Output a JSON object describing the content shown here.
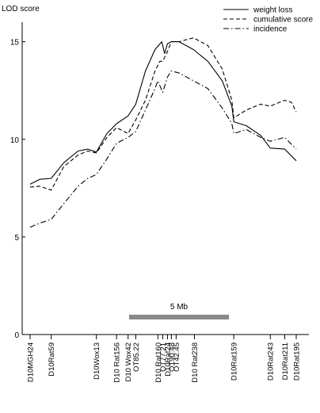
{
  "chart_data": {
    "type": "line",
    "ylabel": "LOD score",
    "ylim": [
      0,
      16
    ],
    "yticks": [
      0,
      5,
      10,
      15
    ],
    "grid": false,
    "legend_placement": "top-right",
    "scale_bar_label": "5 Mb",
    "scale_bar_range": [
      10.3,
      20.7
    ],
    "markers": [
      {
        "name": "D10MGH24",
        "pos": 0
      },
      {
        "name": "D10Rat59",
        "pos": 2.2
      },
      {
        "name": "D10Wox13",
        "pos": 6.9
      },
      {
        "name": "D10 Rat156",
        "pos": 9.0
      },
      {
        "name": "D10 Wox42",
        "pos": 10.2
      },
      {
        "name": "OT85.22",
        "pos": 11.0
      },
      {
        "name": "D10 Rat160",
        "pos": 13.3
      },
      {
        "name": "OT77.21",
        "pos": 13.8
      },
      {
        "name": "D10Rat24",
        "pos": 14.3
      },
      {
        "name": "OT90.48",
        "pos": 14.7
      },
      {
        "name": "OT42.45",
        "pos": 15.2
      },
      {
        "name": "D10 Rat238",
        "pos": 17.1
      },
      {
        "name": "D10Rat159",
        "pos": 21.2
      },
      {
        "name": "D10Rat243",
        "pos": 25.0
      },
      {
        "name": "D10Rat211",
        "pos": 26.5
      },
      {
        "name": "D10Rat195",
        "pos": 27.7
      }
    ],
    "series": [
      {
        "name": "weight loss",
        "dash": "solid",
        "x": [
          0,
          1.0,
          2.2,
          3.5,
          5.0,
          6.0,
          6.9,
          8.0,
          9.0,
          10.2,
          11.0,
          12.0,
          13.0,
          13.7,
          14.0,
          14.3,
          14.7,
          15.5,
          17.0,
          18.5,
          20.0,
          21.0,
          21.2,
          22.5,
          24.0,
          25.0,
          26.5,
          27.7
        ],
        "values": [
          7.7,
          7.95,
          8.0,
          8.8,
          9.4,
          9.5,
          9.35,
          10.3,
          10.8,
          11.2,
          11.8,
          13.5,
          14.6,
          15.0,
          14.4,
          14.9,
          15.0,
          15.0,
          14.6,
          14.0,
          13.0,
          11.7,
          10.9,
          10.7,
          10.2,
          9.55,
          9.5,
          8.9
        ]
      },
      {
        "name": "cumulative score",
        "dash": "dashed",
        "x": [
          0,
          1.0,
          2.2,
          3.5,
          5.0,
          6.0,
          6.9,
          8.0,
          9.0,
          10.2,
          11.0,
          12.0,
          13.0,
          13.5,
          13.8,
          14.3,
          14.7,
          15.5,
          17.0,
          18.5,
          20.0,
          21.0,
          21.2,
          22.5,
          24.0,
          25.0,
          26.5,
          27.2,
          27.7
        ],
        "values": [
          7.55,
          7.6,
          7.4,
          8.6,
          9.2,
          9.4,
          9.3,
          10.1,
          10.6,
          10.3,
          11.0,
          12.0,
          13.5,
          14.0,
          14.0,
          14.5,
          15.0,
          15.0,
          15.2,
          14.8,
          13.6,
          12.0,
          11.1,
          11.5,
          11.8,
          11.7,
          12.0,
          11.9,
          11.4
        ]
      },
      {
        "name": "incidence",
        "dash": "dashdot",
        "x": [
          0,
          1.0,
          2.2,
          3.5,
          5.0,
          6.0,
          6.9,
          8.0,
          9.0,
          10.2,
          11.0,
          12.0,
          13.0,
          13.3,
          13.8,
          14.3,
          14.7,
          15.5,
          17.0,
          18.5,
          20.0,
          21.0,
          21.2,
          22.5,
          24.0,
          25.0,
          26.5,
          27.7
        ],
        "values": [
          5.5,
          5.7,
          5.9,
          6.7,
          7.6,
          8.0,
          8.2,
          9.0,
          9.8,
          10.1,
          10.4,
          11.5,
          12.6,
          13.0,
          12.4,
          13.2,
          13.5,
          13.4,
          13.0,
          12.6,
          11.6,
          10.8,
          10.3,
          10.5,
          10.1,
          9.9,
          10.1,
          9.5
        ]
      }
    ]
  }
}
